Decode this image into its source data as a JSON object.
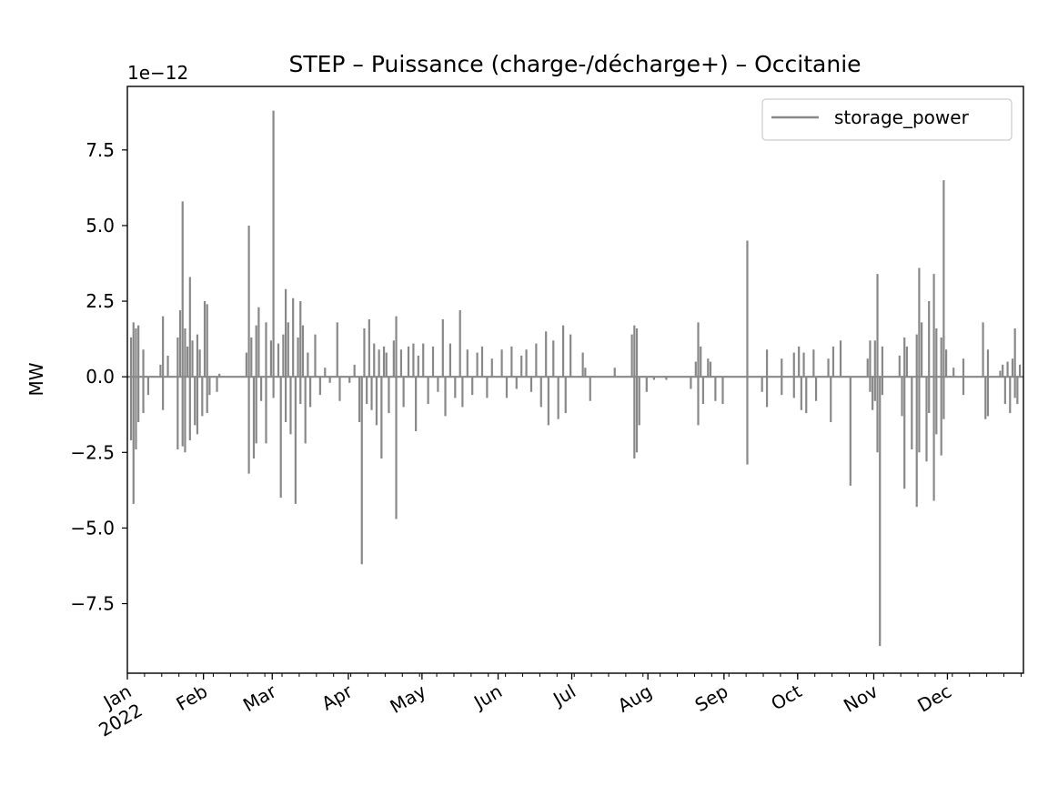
{
  "chart_data": {
    "type": "line",
    "title": "STEP – Puissance (charge-/décharge+) – Occitanie",
    "ylabel": "MW",
    "xlabel": "",
    "y_offset_text": "1e−12",
    "y_scale_factor": 1e-12,
    "ylim": [
      -9.8,
      9.6
    ],
    "xlim": [
      "2022-01-01",
      "2022-12-31"
    ],
    "grid": false,
    "legend_position": "upper right",
    "y_ticks": [
      -7.5,
      -5.0,
      -2.5,
      0.0,
      2.5,
      5.0,
      7.5
    ],
    "y_tick_labels": [
      "−7.5",
      "−5.0",
      "−2.5",
      "0.0",
      "2.5",
      "5.0",
      "7.5"
    ],
    "x_ticks": [
      "2022-01-01",
      "2022-02-01",
      "2022-03-01",
      "2022-04-01",
      "2022-05-01",
      "2022-06-01",
      "2022-07-01",
      "2022-08-01",
      "2022-09-01",
      "2022-10-01",
      "2022-11-01",
      "2022-12-01"
    ],
    "x_tick_labels": [
      [
        "Jan",
        "2022"
      ],
      [
        "Feb"
      ],
      [
        "Mar"
      ],
      [
        "Apr"
      ],
      [
        "May"
      ],
      [
        "Jun"
      ],
      [
        "Jul"
      ],
      [
        "Aug"
      ],
      [
        "Sep"
      ],
      [
        "Oct"
      ],
      [
        "Nov"
      ],
      [
        "Dec"
      ]
    ],
    "series": [
      {
        "name": "storage_power",
        "color": "#888888",
        "spikes": [
          [
            "2022-01-02",
            1.3
          ],
          [
            "2022-01-02",
            -2.1
          ],
          [
            "2022-01-03",
            1.8
          ],
          [
            "2022-01-03",
            -4.2
          ],
          [
            "2022-01-04",
            1.6
          ],
          [
            "2022-01-04",
            -2.4
          ],
          [
            "2022-01-05",
            1.7
          ],
          [
            "2022-01-05",
            -1.5
          ],
          [
            "2022-01-07",
            0.9
          ],
          [
            "2022-01-07",
            -1.2
          ],
          [
            "2022-01-09",
            -0.6
          ],
          [
            "2022-01-14",
            0.4
          ],
          [
            "2022-01-15",
            2.0
          ],
          [
            "2022-01-15",
            -1.1
          ],
          [
            "2022-01-17",
            0.7
          ],
          [
            "2022-01-21",
            1.3
          ],
          [
            "2022-01-21",
            -2.4
          ],
          [
            "2022-01-22",
            2.2
          ],
          [
            "2022-01-23",
            5.8
          ],
          [
            "2022-01-23",
            -2.3
          ],
          [
            "2022-01-24",
            1.6
          ],
          [
            "2022-01-24",
            -2.5
          ],
          [
            "2022-01-25",
            1.0
          ],
          [
            "2022-01-26",
            3.3
          ],
          [
            "2022-01-26",
            -2.1
          ],
          [
            "2022-01-27",
            1.2
          ],
          [
            "2022-01-28",
            -1.6
          ],
          [
            "2022-01-29",
            1.4
          ],
          [
            "2022-01-29",
            -1.9
          ],
          [
            "2022-01-30",
            0.9
          ],
          [
            "2022-01-31",
            -1.3
          ],
          [
            "2022-02-01",
            2.5
          ],
          [
            "2022-02-02",
            2.4
          ],
          [
            "2022-02-02",
            -1.2
          ],
          [
            "2022-02-03",
            -0.6
          ],
          [
            "2022-02-06",
            -0.5
          ],
          [
            "2022-02-07",
            0.1
          ],
          [
            "2022-02-18",
            0.8
          ],
          [
            "2022-02-19",
            5.0
          ],
          [
            "2022-02-19",
            -3.2
          ],
          [
            "2022-02-20",
            1.3
          ],
          [
            "2022-02-21",
            -2.7
          ],
          [
            "2022-02-22",
            1.7
          ],
          [
            "2022-02-22",
            -2.2
          ],
          [
            "2022-02-23",
            2.3
          ],
          [
            "2022-02-24",
            -0.8
          ],
          [
            "2022-02-26",
            1.8
          ],
          [
            "2022-02-26",
            -2.2
          ],
          [
            "2022-02-28",
            1.2
          ],
          [
            "2022-03-01",
            8.8
          ],
          [
            "2022-03-01",
            -0.7
          ],
          [
            "2022-03-03",
            1.1
          ],
          [
            "2022-03-04",
            -4.0
          ],
          [
            "2022-03-05",
            1.4
          ],
          [
            "2022-03-06",
            2.9
          ],
          [
            "2022-03-06",
            -1.5
          ],
          [
            "2022-03-07",
            1.8
          ],
          [
            "2022-03-08",
            -1.9
          ],
          [
            "2022-03-09",
            2.6
          ],
          [
            "2022-03-10",
            -4.2
          ],
          [
            "2022-03-11",
            1.3
          ],
          [
            "2022-03-12",
            2.5
          ],
          [
            "2022-03-12",
            -0.9
          ],
          [
            "2022-03-13",
            1.7
          ],
          [
            "2022-03-14",
            -2.2
          ],
          [
            "2022-03-15",
            0.8
          ],
          [
            "2022-03-16",
            -1.0
          ],
          [
            "2022-03-18",
            1.4
          ],
          [
            "2022-03-20",
            -0.6
          ],
          [
            "2022-03-22",
            0.3
          ],
          [
            "2022-03-24",
            -0.2
          ],
          [
            "2022-03-27",
            1.8
          ],
          [
            "2022-03-28",
            -0.8
          ],
          [
            "2022-04-01",
            -0.2
          ],
          [
            "2022-04-03",
            0.4
          ],
          [
            "2022-04-05",
            -1.5
          ],
          [
            "2022-04-06",
            -6.2
          ],
          [
            "2022-04-07",
            1.6
          ],
          [
            "2022-04-08",
            -0.9
          ],
          [
            "2022-04-09",
            1.9
          ],
          [
            "2022-04-10",
            -1.1
          ],
          [
            "2022-04-11",
            1.1
          ],
          [
            "2022-04-12",
            -1.6
          ],
          [
            "2022-04-13",
            0.9
          ],
          [
            "2022-04-14",
            -2.7
          ],
          [
            "2022-04-15",
            1.0
          ],
          [
            "2022-04-16",
            0.8
          ],
          [
            "2022-04-17",
            -1.2
          ],
          [
            "2022-04-19",
            1.2
          ],
          [
            "2022-04-20",
            2.0
          ],
          [
            "2022-04-20",
            -4.7
          ],
          [
            "2022-04-22",
            0.9
          ],
          [
            "2022-04-23",
            -1.0
          ],
          [
            "2022-04-25",
            1.0
          ],
          [
            "2022-04-27",
            1.1
          ],
          [
            "2022-04-28",
            -1.8
          ],
          [
            "2022-04-29",
            0.7
          ],
          [
            "2022-05-01",
            1.1
          ],
          [
            "2022-05-03",
            -0.9
          ],
          [
            "2022-05-05",
            1.0
          ],
          [
            "2022-05-07",
            -0.5
          ],
          [
            "2022-05-09",
            1.9
          ],
          [
            "2022-05-10",
            -1.3
          ],
          [
            "2022-05-12",
            1.1
          ],
          [
            "2022-05-14",
            -0.7
          ],
          [
            "2022-05-16",
            2.2
          ],
          [
            "2022-05-17",
            -1.0
          ],
          [
            "2022-05-19",
            0.9
          ],
          [
            "2022-05-21",
            -0.6
          ],
          [
            "2022-05-23",
            0.8
          ],
          [
            "2022-05-25",
            1.0
          ],
          [
            "2022-05-27",
            -0.7
          ],
          [
            "2022-05-29",
            0.6
          ],
          [
            "2022-06-02",
            0.9
          ],
          [
            "2022-06-04",
            -0.7
          ],
          [
            "2022-06-06",
            1.0
          ],
          [
            "2022-06-08",
            -0.4
          ],
          [
            "2022-06-10",
            0.7
          ],
          [
            "2022-06-12",
            0.9
          ],
          [
            "2022-06-14",
            -0.5
          ],
          [
            "2022-06-16",
            1.1
          ],
          [
            "2022-06-18",
            -1.0
          ],
          [
            "2022-06-20",
            1.5
          ],
          [
            "2022-06-21",
            -1.6
          ],
          [
            "2022-06-23",
            1.2
          ],
          [
            "2022-06-25",
            -1.4
          ],
          [
            "2022-06-27",
            1.7
          ],
          [
            "2022-06-28",
            -1.2
          ],
          [
            "2022-06-30",
            1.4
          ],
          [
            "2022-07-05",
            0.8
          ],
          [
            "2022-07-06",
            0.3
          ],
          [
            "2022-07-08",
            -0.8
          ],
          [
            "2022-07-18",
            0.3
          ],
          [
            "2022-07-25",
            1.4
          ],
          [
            "2022-07-26",
            1.7
          ],
          [
            "2022-07-26",
            -2.7
          ],
          [
            "2022-07-27",
            1.6
          ],
          [
            "2022-07-27",
            -2.5
          ],
          [
            "2022-07-28",
            -1.6
          ],
          [
            "2022-07-31",
            -0.5
          ],
          [
            "2022-08-03",
            -0.1
          ],
          [
            "2022-08-08",
            -0.1
          ],
          [
            "2022-08-18",
            -0.4
          ],
          [
            "2022-08-20",
            0.5
          ],
          [
            "2022-08-21",
            1.8
          ],
          [
            "2022-08-21",
            -1.6
          ],
          [
            "2022-08-22",
            1.0
          ],
          [
            "2022-08-23",
            -0.9
          ],
          [
            "2022-08-25",
            0.6
          ],
          [
            "2022-08-26",
            0.5
          ],
          [
            "2022-08-28",
            -0.8
          ],
          [
            "2022-08-31",
            -0.9
          ],
          [
            "2022-09-10",
            4.5
          ],
          [
            "2022-09-10",
            -2.9
          ],
          [
            "2022-09-16",
            -0.5
          ],
          [
            "2022-09-18",
            0.9
          ],
          [
            "2022-09-18",
            -1.0
          ],
          [
            "2022-09-24",
            0.6
          ],
          [
            "2022-09-24",
            -0.6
          ],
          [
            "2022-09-29",
            0.8
          ],
          [
            "2022-09-29",
            -0.7
          ],
          [
            "2022-10-01",
            1.0
          ],
          [
            "2022-10-02",
            -1.1
          ],
          [
            "2022-10-03",
            0.8
          ],
          [
            "2022-10-04",
            -1.2
          ],
          [
            "2022-10-07",
            0.9
          ],
          [
            "2022-10-08",
            -0.8
          ],
          [
            "2022-10-13",
            0.6
          ],
          [
            "2022-10-14",
            -1.5
          ],
          [
            "2022-10-15",
            1.0
          ],
          [
            "2022-10-18",
            1.2
          ],
          [
            "2022-10-22",
            -3.6
          ],
          [
            "2022-10-29",
            0.6
          ],
          [
            "2022-10-30",
            -0.5
          ],
          [
            "2022-10-30",
            1.2
          ],
          [
            "2022-10-31",
            -1.1
          ],
          [
            "2022-11-01",
            1.2
          ],
          [
            "2022-11-01",
            -0.8
          ],
          [
            "2022-11-02",
            3.4
          ],
          [
            "2022-11-02",
            -2.5
          ],
          [
            "2022-11-03",
            -8.9
          ],
          [
            "2022-11-04",
            1.0
          ],
          [
            "2022-11-04",
            -0.6
          ],
          [
            "2022-11-11",
            0.7
          ],
          [
            "2022-11-12",
            -1.3
          ],
          [
            "2022-11-13",
            1.3
          ],
          [
            "2022-11-13",
            -3.7
          ],
          [
            "2022-11-14",
            1.0
          ],
          [
            "2022-11-16",
            -2.4
          ],
          [
            "2022-11-18",
            1.4
          ],
          [
            "2022-11-18",
            -4.3
          ],
          [
            "2022-11-19",
            3.6
          ],
          [
            "2022-11-19",
            -2.5
          ],
          [
            "2022-11-20",
            1.8
          ],
          [
            "2022-11-22",
            -2.8
          ],
          [
            "2022-11-23",
            2.5
          ],
          [
            "2022-11-23",
            -1.2
          ],
          [
            "2022-11-25",
            3.4
          ],
          [
            "2022-11-25",
            -4.1
          ],
          [
            "2022-11-26",
            1.6
          ],
          [
            "2022-11-26",
            -1.9
          ],
          [
            "2022-11-28",
            1.3
          ],
          [
            "2022-11-28",
            -2.6
          ],
          [
            "2022-11-29",
            6.5
          ],
          [
            "2022-11-29",
            -1.4
          ],
          [
            "2022-11-30",
            0.9
          ],
          [
            "2022-12-03",
            0.3
          ],
          [
            "2022-12-07",
            0.6
          ],
          [
            "2022-12-07",
            -0.6
          ],
          [
            "2022-12-15",
            1.8
          ],
          [
            "2022-12-16",
            -1.4
          ],
          [
            "2022-12-17",
            0.9
          ],
          [
            "2022-12-17",
            -1.3
          ],
          [
            "2022-12-22",
            0.2
          ],
          [
            "2022-12-23",
            0.4
          ],
          [
            "2022-12-24",
            -0.9
          ],
          [
            "2022-12-25",
            0.5
          ],
          [
            "2022-12-26",
            -1.2
          ],
          [
            "2022-12-27",
            0.6
          ],
          [
            "2022-12-28",
            1.6
          ],
          [
            "2022-12-28",
            -0.7
          ],
          [
            "2022-12-29",
            -0.9
          ],
          [
            "2022-12-30",
            0.4
          ]
        ]
      }
    ]
  }
}
